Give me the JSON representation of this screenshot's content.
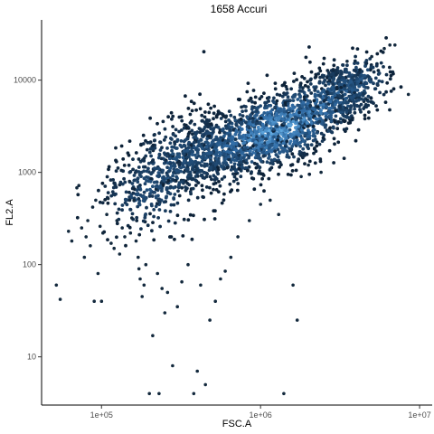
{
  "chart_data": {
    "type": "scatter",
    "title": "1658 Accuri",
    "xlabel": "FSC.A",
    "ylabel": "FL2.A",
    "x_scale": "log10",
    "y_scale": "log10",
    "xlim": [
      42000,
      12000000
    ],
    "ylim": [
      3,
      45000
    ],
    "x_ticks": [
      {
        "value": 100000,
        "label": "1e+05"
      },
      {
        "value": 1000000,
        "label": "1e+06"
      },
      {
        "value": 10000000,
        "label": "1e+07"
      }
    ],
    "y_ticks": [
      {
        "value": 10,
        "label": "10"
      },
      {
        "value": 100,
        "label": "100"
      },
      {
        "value": 1000,
        "label": "1000"
      },
      {
        "value": 10000,
        "label": "10000"
      }
    ],
    "grid": false,
    "legend": "none",
    "density_core": {
      "description_points": [
        [
          180000,
          500
        ],
        [
          320000,
          1500
        ],
        [
          600000,
          1800
        ],
        [
          1000000,
          2500
        ],
        [
          1500000,
          3200
        ],
        [
          2800000,
          6000
        ],
        [
          4500000,
          11000
        ]
      ],
      "colors": {
        "low": "#0d2238",
        "mid": "#2f6aa3",
        "high": "#6ab6ee"
      }
    },
    "outliers": [
      [
        52000,
        60
      ],
      [
        55000,
        42
      ],
      [
        62000,
        230
      ],
      [
        65000,
        180
      ],
      [
        70000,
        680
      ],
      [
        72000,
        720
      ],
      [
        75000,
        250
      ],
      [
        78000,
        120
      ],
      [
        80000,
        200
      ],
      [
        82000,
        300
      ],
      [
        85000,
        160
      ],
      [
        88000,
        420
      ],
      [
        90000,
        40
      ],
      [
        92000,
        500
      ],
      [
        95000,
        80
      ],
      [
        98000,
        260
      ],
      [
        100000,
        40
      ],
      [
        102000,
        220
      ],
      [
        108000,
        350
      ],
      [
        110000,
        520
      ],
      [
        115000,
        170
      ],
      [
        120000,
        150
      ],
      [
        125000,
        300
      ],
      [
        130000,
        130
      ],
      [
        135000,
        250
      ],
      [
        140000,
        200
      ],
      [
        150000,
        800
      ],
      [
        152000,
        220
      ],
      [
        155000,
        320
      ],
      [
        160000,
        500
      ],
      [
        165000,
        180
      ],
      [
        170000,
        120
      ],
      [
        172000,
        90
      ],
      [
        175000,
        70
      ],
      [
        180000,
        45
      ],
      [
        185000,
        60
      ],
      [
        190000,
        100
      ],
      [
        200000,
        4
      ],
      [
        230000,
        4
      ],
      [
        210000,
        17
      ],
      [
        225000,
        80
      ],
      [
        240000,
        55
      ],
      [
        250000,
        30
      ],
      [
        260000,
        50
      ],
      [
        280000,
        8
      ],
      [
        300000,
        35
      ],
      [
        320000,
        65
      ],
      [
        350000,
        100
      ],
      [
        380000,
        4
      ],
      [
        400000,
        7
      ],
      [
        420000,
        60
      ],
      [
        450000,
        5
      ],
      [
        480000,
        25
      ],
      [
        520000,
        40
      ],
      [
        560000,
        70
      ],
      [
        600000,
        85
      ],
      [
        650000,
        120
      ],
      [
        720000,
        200
      ],
      [
        850000,
        300
      ],
      [
        1000000,
        450
      ],
      [
        1150000,
        500
      ],
      [
        1300000,
        350
      ],
      [
        1400000,
        4
      ],
      [
        1600000,
        60
      ],
      [
        1700000,
        25
      ],
      [
        1800000,
        900
      ],
      [
        2000000,
        1200
      ],
      [
        2400000,
        1000
      ],
      [
        6000000,
        22000
      ],
      [
        6500000,
        24000
      ],
      [
        7000000,
        24000
      ],
      [
        8500000,
        7000
      ],
      [
        5000000,
        18000
      ],
      [
        3500000,
        16000
      ]
    ]
  }
}
